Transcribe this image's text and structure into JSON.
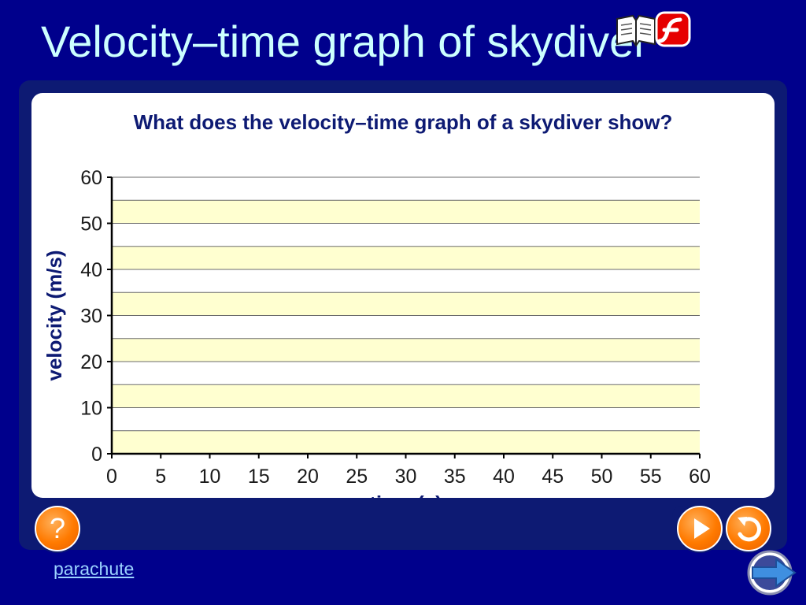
{
  "slide": {
    "title": "Velocity–time graph of skydiver",
    "link_label": "parachute",
    "help_label": "?"
  },
  "icons": {
    "top": [
      "book-icon",
      "flash-icon"
    ],
    "controls": [
      "help-icon",
      "play-icon",
      "replay-icon",
      "next-arrow-icon"
    ]
  },
  "colors": {
    "background": "#00008c",
    "title": "#ccffff",
    "panel": "#0d1a73",
    "band_fill": "#ffffd0",
    "button": "#ff7a00",
    "link": "#9bd3ff"
  },
  "chart_data": {
    "type": "line",
    "title": "What does the velocity–time graph of a skydiver show?",
    "xlabel": "time (s)",
    "ylabel": "velocity (m/s)",
    "xlim": [
      0,
      60
    ],
    "ylim": [
      0,
      60
    ],
    "xticks": [
      0,
      5,
      10,
      15,
      20,
      25,
      30,
      35,
      40,
      45,
      50,
      55,
      60
    ],
    "yticks": [
      0,
      10,
      20,
      30,
      40,
      50,
      60
    ],
    "grid": "horizontal",
    "series": []
  }
}
